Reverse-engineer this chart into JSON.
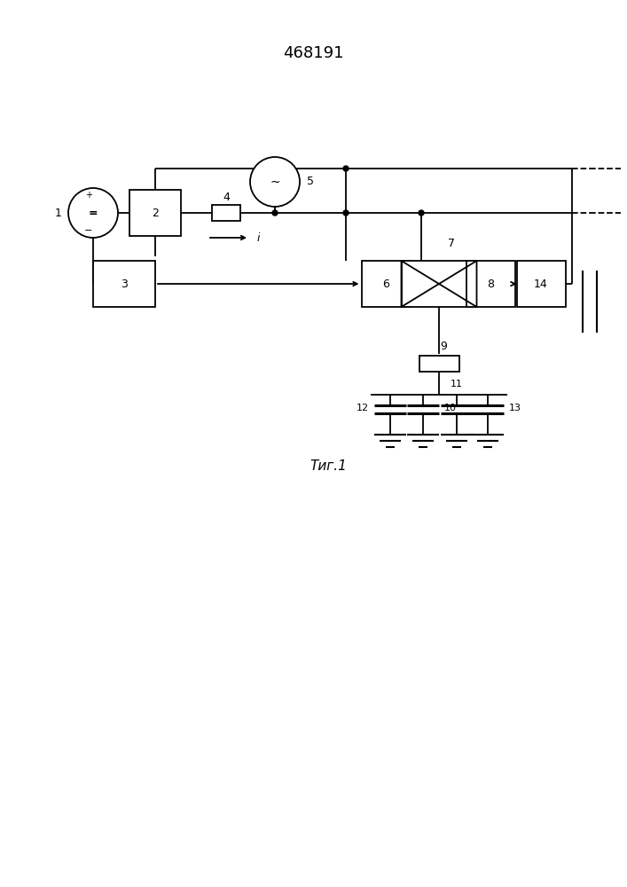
{
  "title": "468191",
  "fig_caption": "Τиг.1",
  "bg_color": "#ffffff",
  "line_color": "#000000",
  "title_fontsize": 13,
  "caption_fontsize": 11,
  "fig_width": 7.07,
  "fig_height": 10.0,
  "dpi": 100
}
